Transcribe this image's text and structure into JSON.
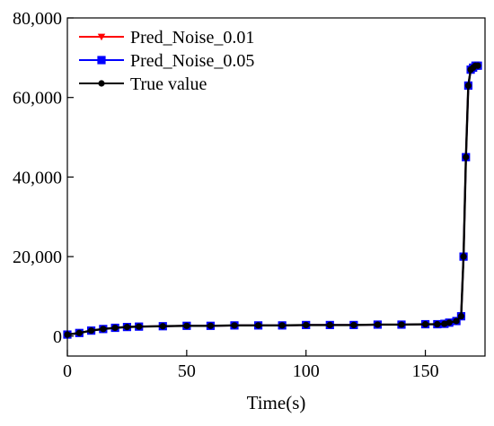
{
  "chart_data": {
    "type": "line",
    "title": "",
    "xlabel": "Time(s)",
    "ylabel": "",
    "xlim": [
      0,
      175
    ],
    "ylim": [
      -5000,
      80000
    ],
    "xticks": [
      0,
      50,
      100,
      150
    ],
    "xtick_labels": [
      "0",
      "50",
      "100",
      "150"
    ],
    "yticks": [
      0,
      20000,
      40000,
      60000,
      80000
    ],
    "ytick_labels": [
      "0",
      "20,000",
      "40,000",
      "60,000",
      "80,000"
    ],
    "grid": false,
    "legend": {
      "placement": "top-left"
    },
    "series": [
      {
        "name": "Pred_Noise_0.01",
        "color": "#ff0000",
        "marker": "triangle-down",
        "x": [
          0,
          5,
          10,
          15,
          20,
          25,
          30,
          40,
          50,
          60,
          70,
          80,
          90,
          100,
          110,
          120,
          130,
          140,
          150,
          155,
          158,
          160,
          163,
          165,
          166,
          167,
          168,
          169,
          170,
          171,
          172
        ],
        "y": [
          400,
          800,
          1400,
          1800,
          2100,
          2300,
          2400,
          2500,
          2600,
          2600,
          2700,
          2700,
          2700,
          2800,
          2800,
          2800,
          2900,
          2900,
          3000,
          3000,
          3100,
          3400,
          3800,
          5000,
          20000,
          45000,
          63000,
          67000,
          67500,
          68000,
          68000
        ]
      },
      {
        "name": "Pred_Noise_0.05",
        "color": "#0000ff",
        "marker": "square",
        "x": [
          0,
          5,
          10,
          15,
          20,
          25,
          30,
          40,
          50,
          60,
          70,
          80,
          90,
          100,
          110,
          120,
          130,
          140,
          150,
          155,
          158,
          160,
          163,
          165,
          166,
          167,
          168,
          169,
          170,
          171,
          172
        ],
        "y": [
          400,
          800,
          1400,
          1800,
          2100,
          2300,
          2400,
          2500,
          2600,
          2600,
          2700,
          2700,
          2700,
          2800,
          2800,
          2800,
          2900,
          2900,
          3000,
          3000,
          3100,
          3400,
          3800,
          5000,
          20000,
          45000,
          63000,
          67000,
          67500,
          68000,
          68000
        ]
      },
      {
        "name": "True value",
        "color": "#000000",
        "marker": "circle",
        "x": [
          0,
          5,
          10,
          15,
          20,
          25,
          30,
          40,
          50,
          60,
          70,
          80,
          90,
          100,
          110,
          120,
          130,
          140,
          150,
          155,
          158,
          160,
          163,
          165,
          166,
          167,
          168,
          169,
          170,
          171,
          172
        ],
        "y": [
          400,
          800,
          1400,
          1800,
          2100,
          2300,
          2400,
          2500,
          2600,
          2600,
          2700,
          2700,
          2700,
          2800,
          2800,
          2800,
          2900,
          2900,
          3000,
          3000,
          3100,
          3400,
          3800,
          5000,
          20000,
          45000,
          63000,
          67000,
          67500,
          68000,
          68000
        ]
      }
    ]
  }
}
